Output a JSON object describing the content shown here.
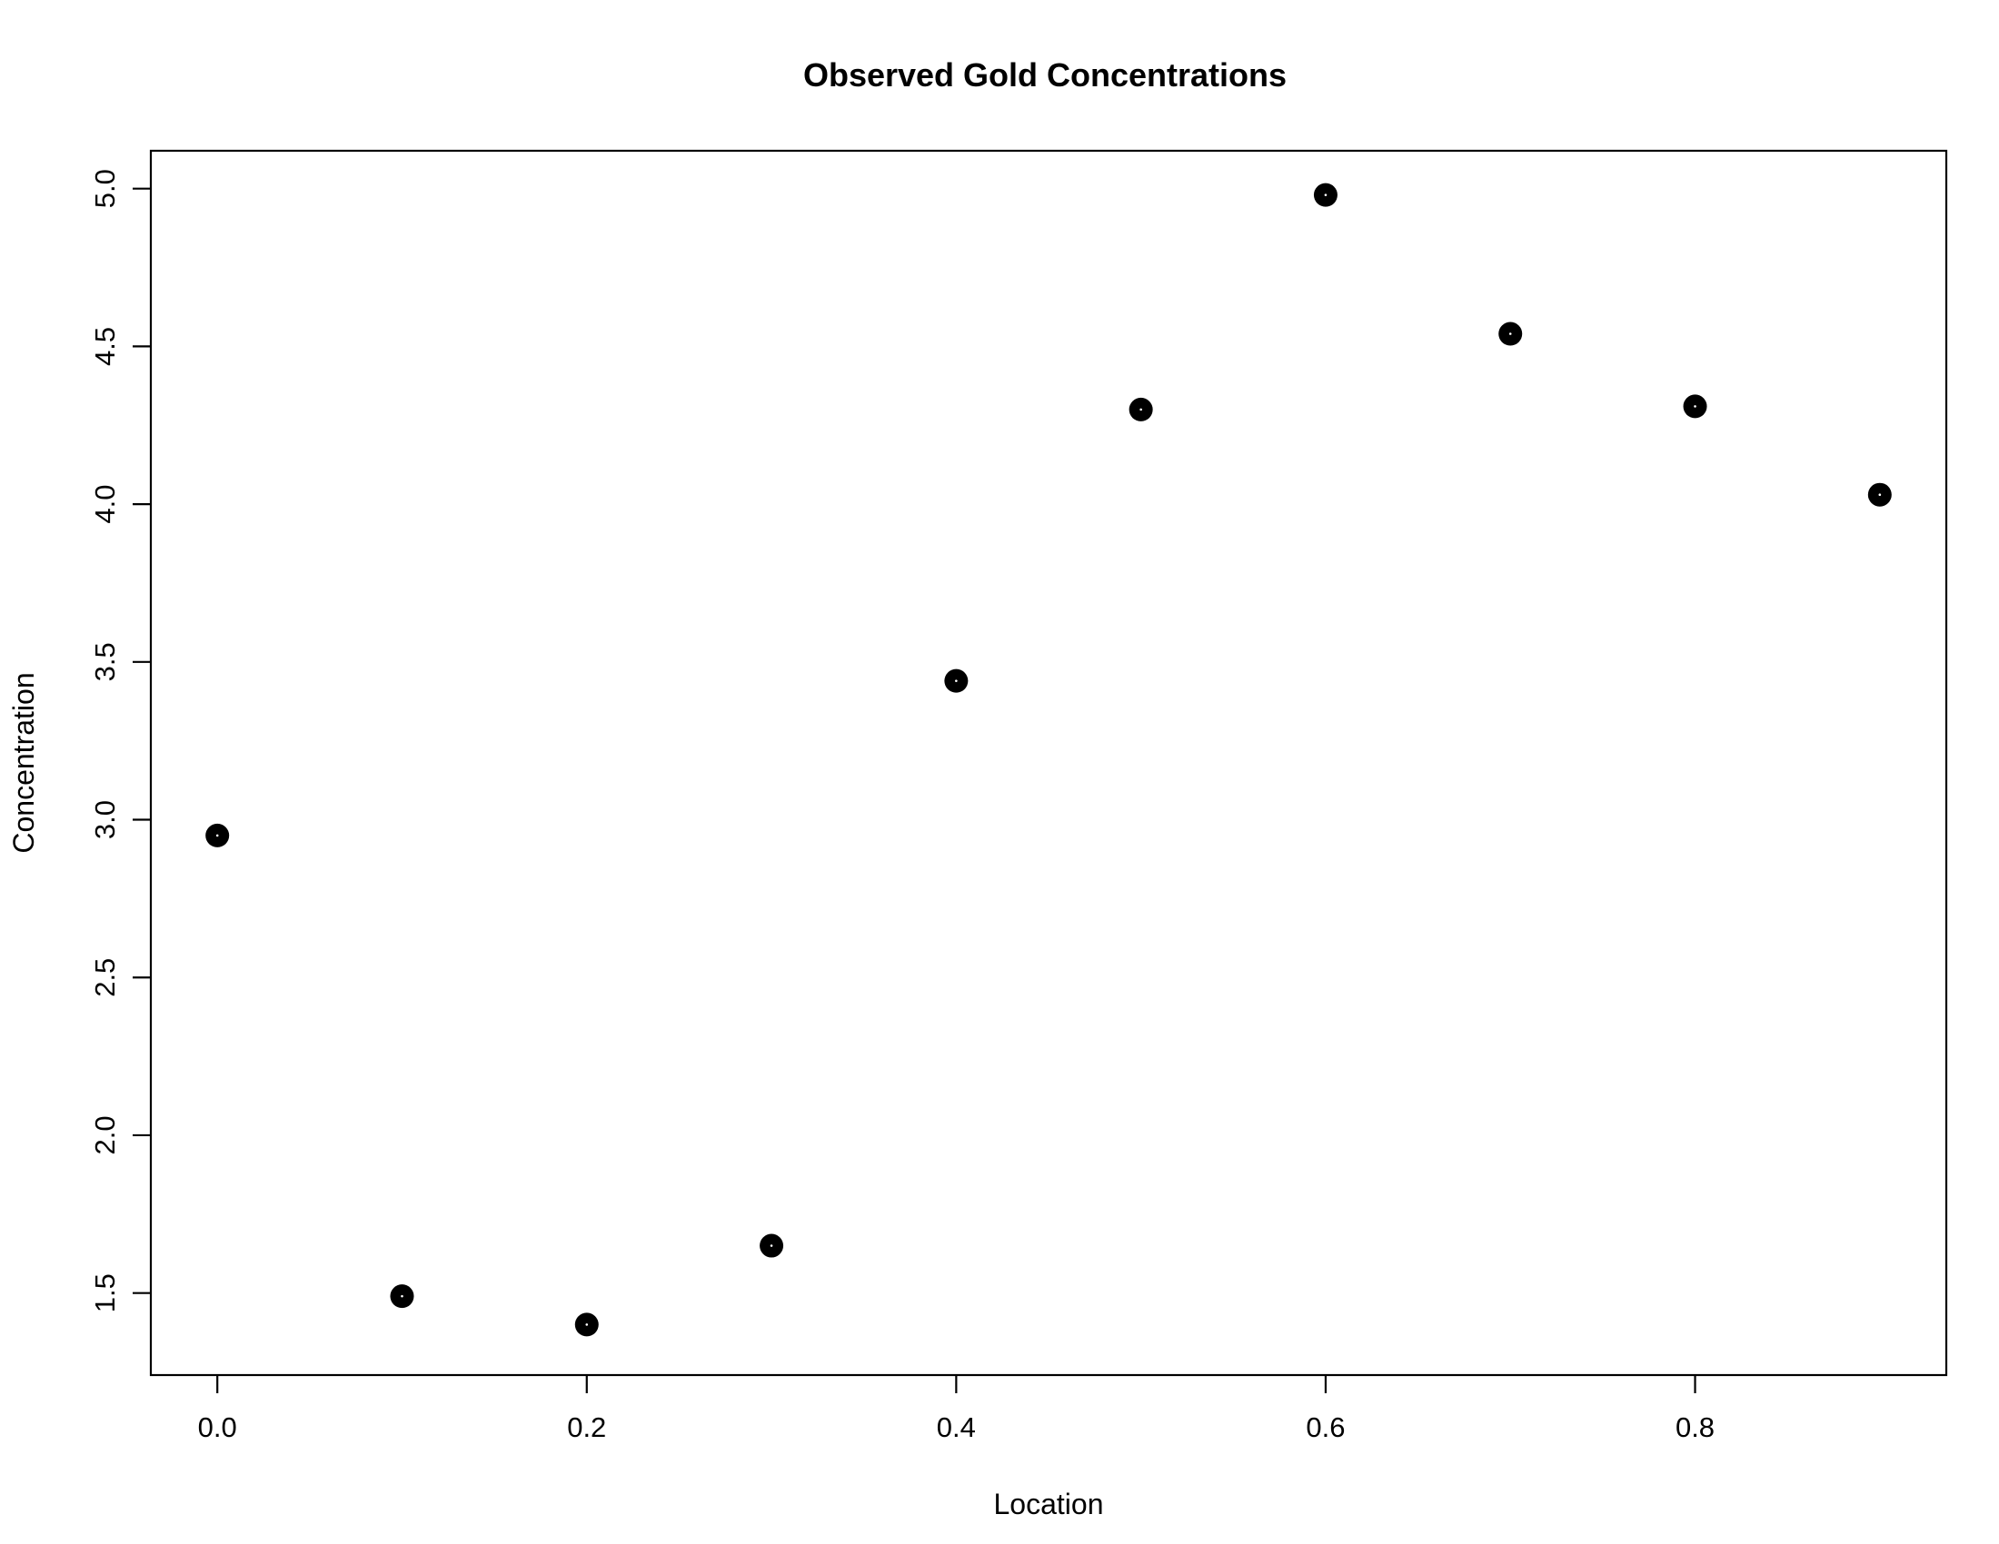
{
  "chart_data": {
    "type": "scatter",
    "title": "Observed Gold Concentrations",
    "xlabel": "Location",
    "ylabel": "Concentration",
    "x": [
      0.0,
      0.1,
      0.2,
      0.3,
      0.4,
      0.5,
      0.6,
      0.7,
      0.8,
      0.9
    ],
    "y": [
      2.95,
      1.49,
      1.4,
      1.65,
      3.44,
      4.3,
      4.98,
      4.54,
      4.31,
      4.03
    ],
    "xlim": [
      -0.036,
      0.936
    ],
    "ylim": [
      1.24,
      5.12
    ],
    "x_ticks": [
      0.0,
      0.2,
      0.4,
      0.6,
      0.8
    ],
    "x_tick_labels": [
      "0.0",
      "0.2",
      "0.4",
      "0.6",
      "0.8"
    ],
    "y_ticks": [
      1.5,
      2.0,
      2.5,
      3.0,
      3.5,
      4.0,
      4.5,
      5.0
    ],
    "y_tick_labels": [
      "1.5",
      "2.0",
      "2.5",
      "3.0",
      "3.5",
      "4.0",
      "4.5",
      "5.0"
    ],
    "grid": false,
    "legend": "none",
    "marker": "filled-circle",
    "point_color": "#000000",
    "frame_color": "#000000",
    "background": "#ffffff"
  }
}
